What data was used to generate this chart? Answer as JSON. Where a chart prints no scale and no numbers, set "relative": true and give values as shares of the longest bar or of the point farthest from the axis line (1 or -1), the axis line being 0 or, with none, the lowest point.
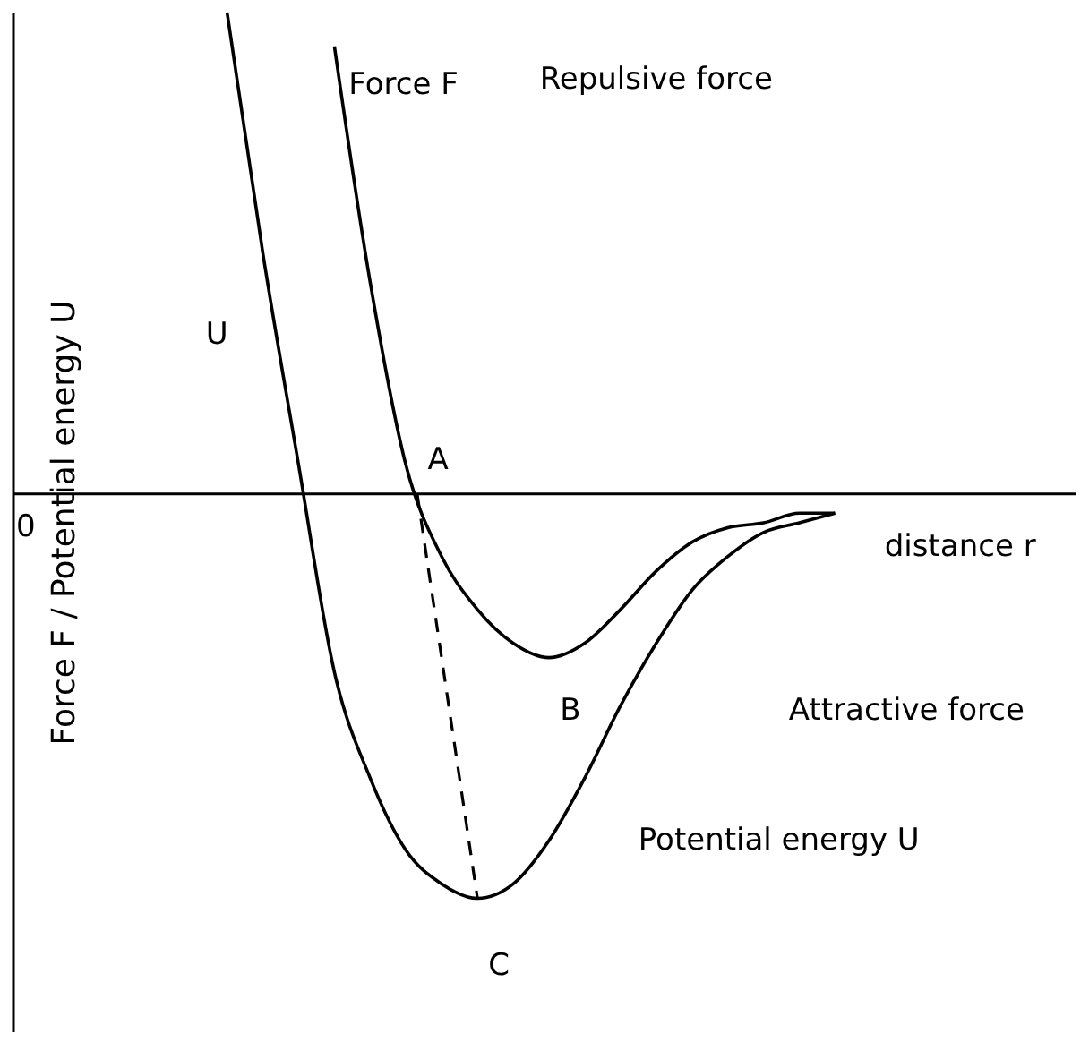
{
  "chart_data": {
    "type": "line",
    "relative": true,
    "ylabel": "Force F / Potential energy U",
    "xlabel": "distance r",
    "legend": false,
    "categories": [
      null,
      null,
      null,
      null,
      null,
      null,
      null,
      null,
      null,
      null,
      null,
      null,
      null,
      null,
      null,
      null,
      null,
      null
    ],
    "series": [
      {
        "name": "Force F",
        "color": "#000000",
        "values": [
          null,
          null,
          null,
          0.93,
          0.44,
          0.06,
          -0.13,
          -0.24,
          -0.31,
          -0.34,
          -0.31,
          -0.24,
          -0.16,
          -0.1,
          -0.07,
          -0.06,
          -0.04,
          -0.04
        ]
      },
      {
        "name": "Potential energy U",
        "color": "#000000",
        "values": [
          1.0,
          0.5,
          0.06,
          -0.37,
          -0.59,
          -0.74,
          -0.81,
          -0.84,
          -0.81,
          -0.72,
          -0.59,
          -0.44,
          -0.31,
          -0.2,
          -0.13,
          -0.08,
          -0.06,
          -0.04
        ]
      }
    ],
    "annotations": [
      "0",
      "U",
      "Repulsive force",
      "Attractive force",
      "A",
      "B",
      "C"
    ]
  }
}
